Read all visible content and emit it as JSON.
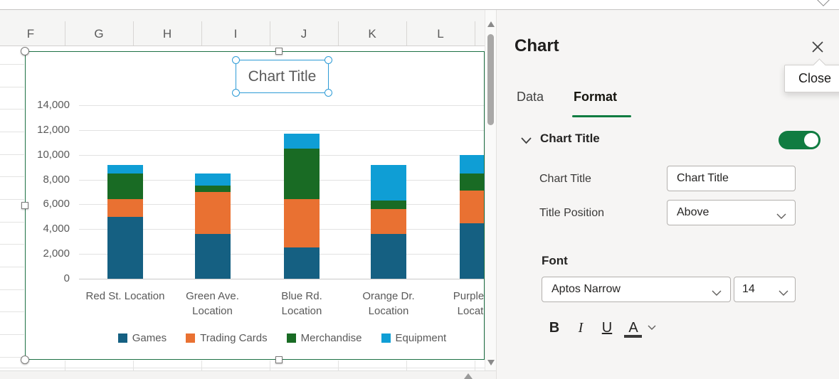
{
  "spreadsheet": {
    "columns": [
      "F",
      "G",
      "H",
      "I",
      "J",
      "K",
      "L"
    ]
  },
  "chart_data": {
    "type": "bar",
    "stacked": true,
    "title": "Chart Title",
    "categories": [
      "Red St. Location",
      "Green Ave. Location",
      "Blue Rd. Location",
      "Orange Dr. Location",
      "Purple Ln. Location"
    ],
    "category_lines": [
      [
        "Red St. Location"
      ],
      [
        "Green Ave.",
        "Location"
      ],
      [
        "Blue Rd.",
        "Location"
      ],
      [
        "Orange Dr.",
        "Location"
      ],
      [
        "Purple Ln.",
        "Location"
      ]
    ],
    "series": [
      {
        "name": "Games",
        "color": "#156082",
        "values": [
          5000,
          3600,
          2500,
          3600,
          4500
        ]
      },
      {
        "name": "Trading Cards",
        "color": "#E97132",
        "values": [
          1400,
          3400,
          3900,
          2000,
          2600
        ]
      },
      {
        "name": "Merchandise",
        "color": "#196B24",
        "values": [
          2100,
          500,
          4100,
          700,
          1400
        ]
      },
      {
        "name": "Equipment",
        "color": "#0F9ED5",
        "values": [
          700,
          1000,
          1200,
          2900,
          1500
        ]
      }
    ],
    "ylim": [
      0,
      14000
    ],
    "ytick_step": 2000,
    "grid": true,
    "legend_position": "bottom"
  },
  "panel": {
    "title": "Chart",
    "close_tooltip": "Close",
    "tabs": [
      {
        "label": "Data",
        "active": false
      },
      {
        "label": "Format",
        "active": true
      }
    ],
    "section": {
      "title": "Chart Title",
      "toggle_on": true
    },
    "fields": {
      "chart_title_label": "Chart Title",
      "chart_title_value": "Chart Title",
      "title_position_label": "Title Position",
      "title_position_value": "Above"
    },
    "font_section": {
      "label": "Font",
      "family": "Aptos Narrow",
      "size": "14",
      "bold_label": "B",
      "italic_label": "I",
      "underline_label": "U",
      "font_color_label": "A"
    }
  },
  "colors": {
    "accent_green": "#107C41",
    "chart_border_green": "#1E7145",
    "selection_blue": "#2E9BD6",
    "series": [
      "#156082",
      "#E97132",
      "#196B24",
      "#0F9ED5"
    ]
  }
}
